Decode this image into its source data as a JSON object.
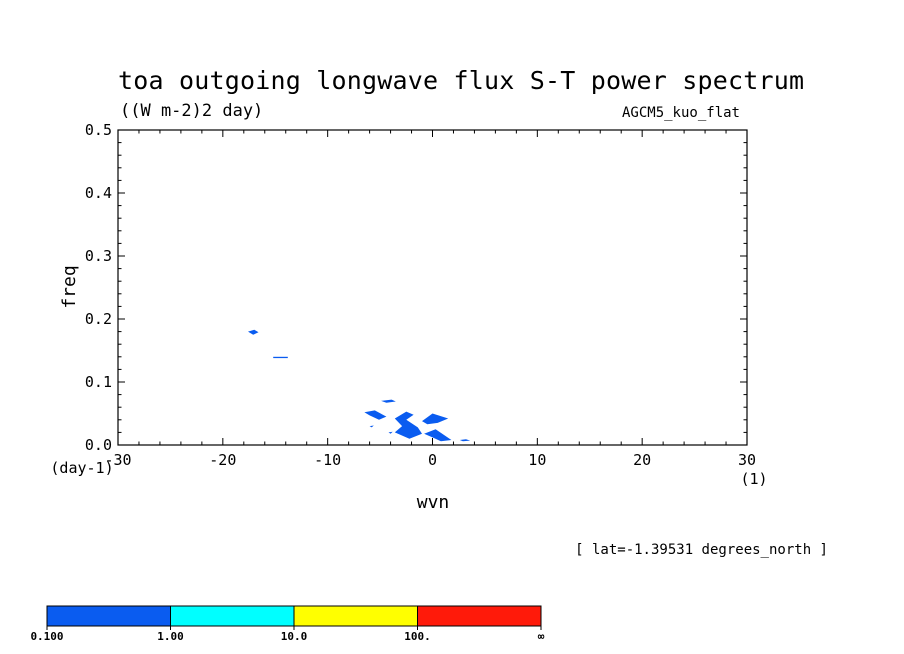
{
  "chart_data": {
    "type": "contour",
    "title": "toa outgoing longwave flux S-T power spectrum",
    "subtitle": "((W m-2)2 day)",
    "model_label": "AGCM5_kuo_flat",
    "info_label": "[ lat=-1.39531 degrees_north ]",
    "xlabel": "wvn",
    "ylabel": "freq",
    "x_unit": "(1)",
    "y_unit": "(day-1)",
    "xlim": [
      -30,
      30
    ],
    "ylim": [
      0,
      0.5
    ],
    "x_ticks": [
      "-30",
      "-20",
      "-10",
      "0",
      "10",
      "20",
      "30"
    ],
    "y_ticks": [
      "0.0",
      "0.1",
      "0.2",
      "0.3",
      "0.4",
      "0.5"
    ],
    "x_tick_values": [
      -30,
      -20,
      -10,
      0,
      10,
      20,
      30
    ],
    "y_tick_values": [
      0.0,
      0.1,
      0.2,
      0.3,
      0.4,
      0.5
    ],
    "grid": false,
    "levels": [
      {
        "label": "0.100",
        "color": "#0a5cf0"
      },
      {
        "label": "1.00",
        "color": "#00ffff"
      },
      {
        "label": "10.0",
        "color": "#ffff00"
      },
      {
        "label": "100.",
        "color": "#ff1a0a"
      },
      {
        "label": "∞",
        "color": null
      }
    ],
    "filled_regions": [
      {
        "level": "0.100",
        "points": [
          [
            -17.6,
            0.18
          ],
          [
            -17.0,
            0.183
          ],
          [
            -16.6,
            0.179
          ],
          [
            -17.1,
            0.175
          ]
        ]
      },
      {
        "level": "0.100",
        "points": [
          [
            -15.2,
            0.14
          ],
          [
            -13.8,
            0.14
          ],
          [
            -13.8,
            0.138
          ],
          [
            -15.2,
            0.138
          ]
        ]
      },
      {
        "level": "0.100",
        "points": [
          [
            -4.9,
            0.07
          ],
          [
            -3.9,
            0.072
          ],
          [
            -3.5,
            0.069
          ],
          [
            -4.4,
            0.067
          ]
        ]
      },
      {
        "level": "0.100",
        "points": [
          [
            -6.5,
            0.052
          ],
          [
            -5.5,
            0.055
          ],
          [
            -4.4,
            0.045
          ],
          [
            -5.1,
            0.04
          ],
          [
            -6.0,
            0.047
          ]
        ]
      },
      {
        "level": "0.100",
        "points": [
          [
            -6.0,
            0.03
          ],
          [
            -5.6,
            0.031
          ],
          [
            -5.8,
            0.028
          ]
        ]
      },
      {
        "level": "0.100",
        "points": [
          [
            -3.6,
            0.042
          ],
          [
            -2.5,
            0.053
          ],
          [
            -1.8,
            0.048
          ],
          [
            -2.5,
            0.04
          ],
          [
            -1.4,
            0.028
          ],
          [
            -1.0,
            0.018
          ],
          [
            -2.2,
            0.01
          ],
          [
            -3.6,
            0.02
          ],
          [
            -2.9,
            0.03
          ]
        ]
      },
      {
        "level": "0.100",
        "points": [
          [
            -4.2,
            0.02
          ],
          [
            -3.8,
            0.021
          ],
          [
            -4.0,
            0.018
          ]
        ]
      },
      {
        "level": "0.100",
        "points": [
          [
            -1.0,
            0.038
          ],
          [
            0.0,
            0.05
          ],
          [
            1.5,
            0.042
          ],
          [
            0.5,
            0.035
          ],
          [
            -0.5,
            0.033
          ]
        ]
      },
      {
        "level": "0.100",
        "points": [
          [
            -0.8,
            0.018
          ],
          [
            0.3,
            0.025
          ],
          [
            1.8,
            0.008
          ],
          [
            0.8,
            0.006
          ],
          [
            0.0,
            0.012
          ]
        ]
      },
      {
        "level": "0.100",
        "points": [
          [
            2.6,
            0.008
          ],
          [
            3.2,
            0.009
          ],
          [
            3.6,
            0.007
          ],
          [
            2.9,
            0.006
          ]
        ]
      }
    ]
  }
}
